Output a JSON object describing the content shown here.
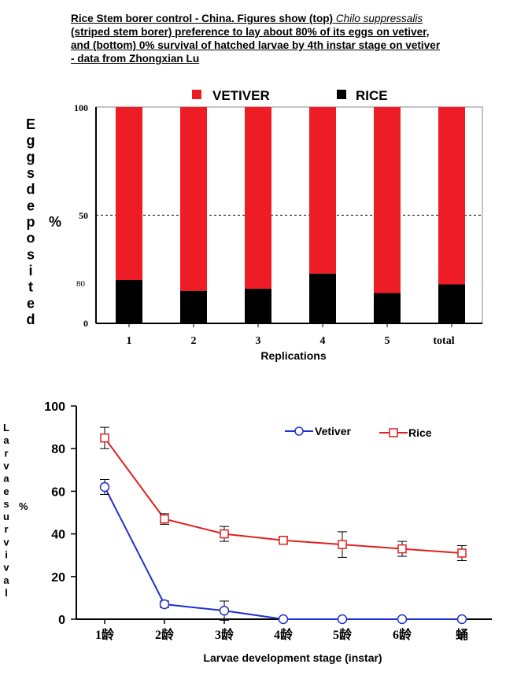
{
  "caption": {
    "line1_prefix": "Rice Stem borer control - China. Figures show (top) ",
    "line1_species": "Chilo suppressalis",
    "line2": "(striped stem borer) preference to lay about 80% of its eggs on vetiver,",
    "line3": "and (bottom) 0% survival of hatched larvae by 4th instar stage on vetiver",
    "line4": " - data from Zhongxian Lu"
  },
  "top_chart_text": {
    "ylabel_letters": [
      "E",
      "g",
      "g",
      "s",
      "d",
      "e",
      "p",
      "o",
      "s",
      "i",
      "t",
      "e",
      "d"
    ],
    "ylabel_unit": "%",
    "ytick_100": "100",
    "ytick_50": "50",
    "ytick_80": "80",
    "ytick_0": "0"
  },
  "bottom_chart_text": {
    "ylabel_letters": [
      "L",
      "a",
      "r",
      "v",
      "a",
      "e",
      "s",
      "u",
      "r",
      "v",
      "i",
      "v",
      "a",
      "l"
    ],
    "ylabel_unit": "%"
  },
  "colors": {
    "vetiver_bar": "#ee1c25",
    "rice_bar": "#000000",
    "vetiver_line": "#1f2fd0",
    "rice_line": "#e02020"
  },
  "chart_data": [
    {
      "type": "bar",
      "stacked": true,
      "categories": [
        "1",
        "2",
        "3",
        "4",
        "5",
        "total"
      ],
      "series": [
        {
          "name": "RICE",
          "values": [
            20,
            15,
            16,
            23,
            14,
            18
          ]
        },
        {
          "name": "VETIVER",
          "values": [
            80,
            85,
            84,
            77,
            86,
            82
          ]
        }
      ],
      "xlabel": "Replications",
      "ylim": [
        0,
        100
      ],
      "reference_line": 50,
      "legend": "top",
      "grid": false
    },
    {
      "type": "line",
      "categories": [
        "1龄",
        "2龄",
        "3龄",
        "4龄",
        "5龄",
        "6龄",
        "蛹"
      ],
      "series": [
        {
          "name": "Vetiver",
          "values": [
            62,
            7,
            4,
            0,
            0,
            0,
            0
          ],
          "errors": [
            3.5,
            1.5,
            4.5,
            0,
            0,
            0,
            0
          ],
          "marker": "circle"
        },
        {
          "name": "Rice",
          "values": [
            85,
            47,
            40,
            37,
            35,
            33,
            31
          ],
          "errors": [
            5,
            2.5,
            3.5,
            1.5,
            6,
            3.5,
            3.5
          ],
          "marker": "square"
        }
      ],
      "xlabel": "Larvae development stage (instar)",
      "ylim": [
        0,
        100
      ],
      "yticks": [
        0,
        20,
        40,
        60,
        80,
        100
      ],
      "legend": "top-right",
      "grid": false
    }
  ]
}
